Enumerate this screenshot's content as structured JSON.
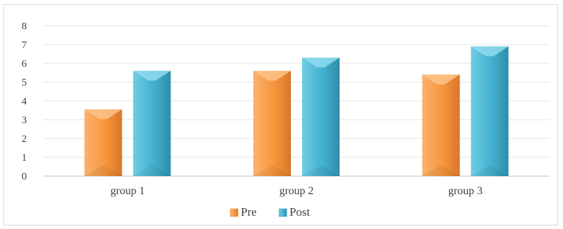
{
  "chart_data": {
    "type": "bar",
    "categories": [
      "group 1",
      "group 2",
      "group 3"
    ],
    "series": [
      {
        "name": "Pre",
        "values": [
          3.55,
          5.6,
          5.4
        ],
        "color": "#f79646"
      },
      {
        "name": "Post",
        "values": [
          5.6,
          6.3,
          6.9
        ],
        "color": "#4bacc6"
      }
    ],
    "y_ticks": [
      "0",
      "1",
      "2",
      "3",
      "4",
      "5",
      "6",
      "7",
      "8"
    ],
    "ylim": [
      0,
      8
    ],
    "grid": true,
    "legend_position": "bottom",
    "title": "",
    "xlabel": "",
    "ylabel": ""
  }
}
